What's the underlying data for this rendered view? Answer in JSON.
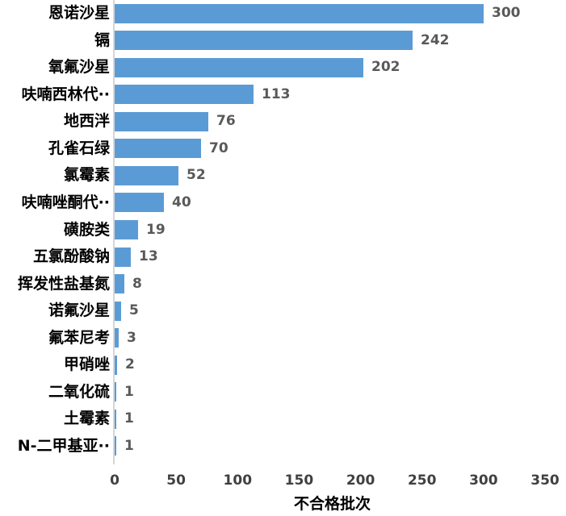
{
  "chart_data": {
    "type": "bar",
    "orientation": "horizontal",
    "categories": [
      "恩诺沙星",
      "镉",
      "氧氟沙星",
      "呋喃西林代··",
      "地西泮",
      "孔雀石绿",
      "氯霉素",
      "呋喃唑酮代··",
      "磺胺类",
      "五氯酚酸钠",
      "挥发性盐基氮",
      "诺氟沙星",
      "氟苯尼考",
      "甲硝唑",
      "二氧化硫",
      "土霉素",
      "N-二甲基亚··"
    ],
    "values": [
      300,
      242,
      202,
      113,
      76,
      70,
      52,
      40,
      19,
      13,
      8,
      5,
      3,
      2,
      1,
      1,
      1
    ],
    "title": "",
    "xlabel": "不合格批次",
    "ylabel": "",
    "xlim": [
      0,
      350
    ],
    "xticks": [
      0,
      50,
      100,
      150,
      200,
      250,
      300,
      350
    ],
    "grid": false,
    "legend": false,
    "bar_color": "#5B9BD5",
    "value_label_color": "#595959",
    "tick_label_color": "#404040",
    "axis_line_color": "#D6D6D6"
  }
}
